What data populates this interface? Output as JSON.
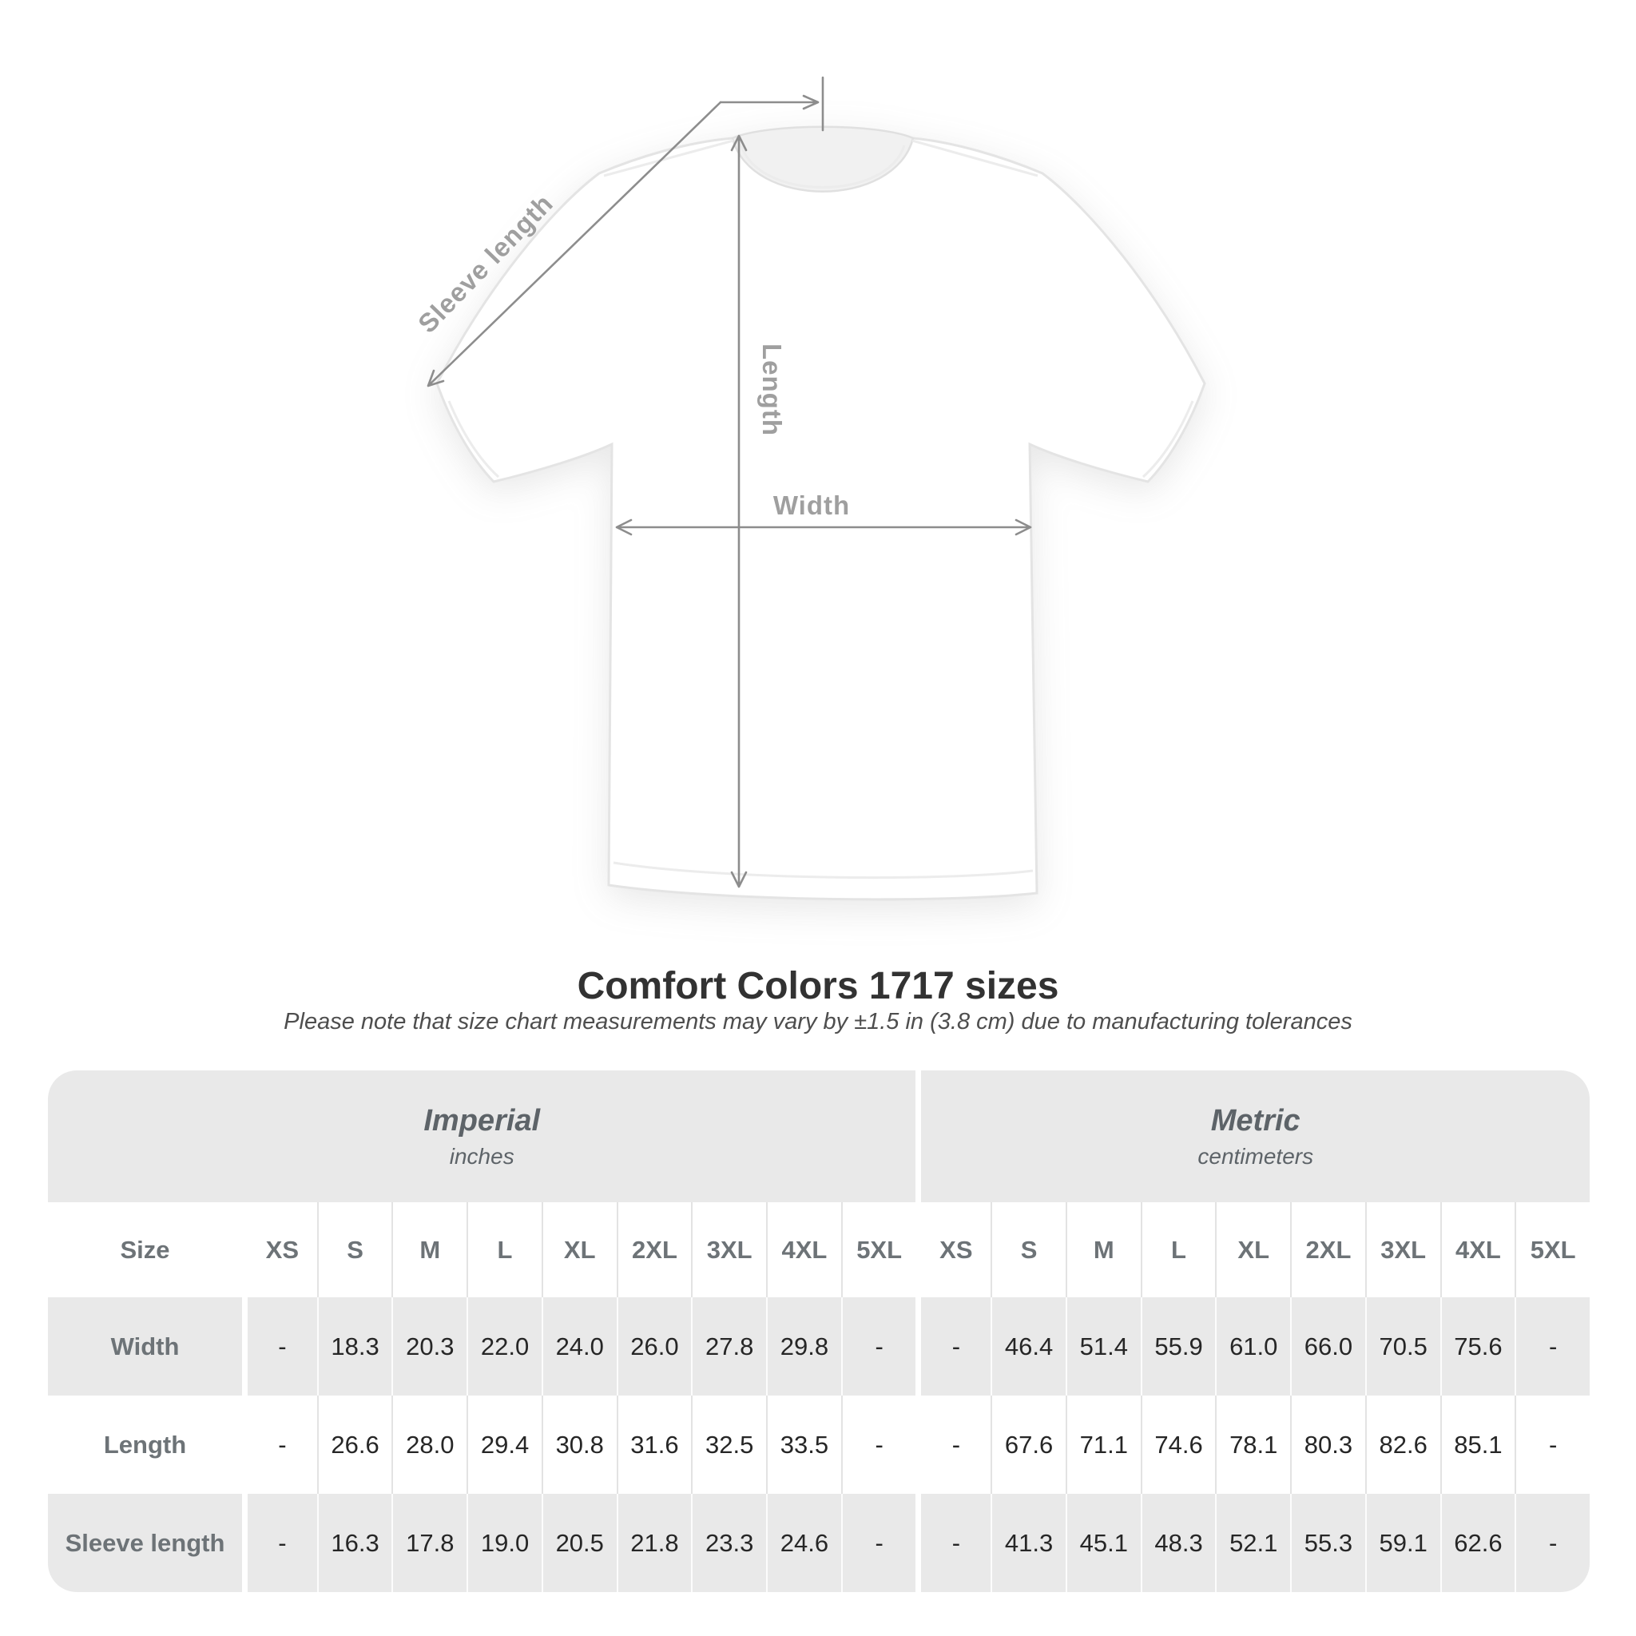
{
  "diagram": {
    "sleeve_length_label": "Sleeve length",
    "length_label": "Length",
    "width_label": "Width"
  },
  "heading": {
    "title": "Comfort Colors 1717 sizes",
    "subtitle": "Please note that size chart measurements may vary by ±1.5 in (3.8 cm) due to manufacturing tolerances"
  },
  "table": {
    "corner_label": "Size",
    "sections": [
      {
        "name": "Imperial",
        "unit": "inches"
      },
      {
        "name": "Metric",
        "unit": "centimeters"
      }
    ],
    "sizes": [
      "XS",
      "S",
      "M",
      "L",
      "XL",
      "2XL",
      "3XL",
      "4XL",
      "5XL"
    ],
    "rows": [
      {
        "label": "Width",
        "imperial": [
          "-",
          "18.3",
          "20.3",
          "22.0",
          "24.0",
          "26.0",
          "27.8",
          "29.8",
          "-"
        ],
        "metric": [
          "-",
          "46.4",
          "51.4",
          "55.9",
          "61.0",
          "66.0",
          "70.5",
          "75.6",
          "-"
        ]
      },
      {
        "label": "Length",
        "imperial": [
          "-",
          "26.6",
          "28.0",
          "29.4",
          "30.8",
          "31.6",
          "32.5",
          "33.5",
          "-"
        ],
        "metric": [
          "-",
          "67.6",
          "71.1",
          "74.6",
          "78.1",
          "80.3",
          "82.6",
          "85.1",
          "-"
        ]
      },
      {
        "label": "Sleeve length",
        "imperial": [
          "-",
          "16.3",
          "17.8",
          "19.0",
          "20.5",
          "21.8",
          "23.3",
          "24.6",
          "-"
        ],
        "metric": [
          "-",
          "41.3",
          "45.1",
          "48.3",
          "52.1",
          "55.3",
          "59.1",
          "62.6",
          "-"
        ]
      }
    ]
  },
  "colors": {
    "table_gray": "#e9e9e9",
    "arrow_gray": "#8d8d8d",
    "diagram_label_gray": "#9f9f9f",
    "header_text": "#6d7377",
    "value_text": "#262626"
  },
  "chart_data": {
    "type": "table",
    "title": "Comfort Colors 1717 sizes",
    "note": "Please note that size chart measurements may vary by ±1.5 in (3.8 cm) due to manufacturing tolerances",
    "sections": [
      "Imperial (inches)",
      "Metric (centimeters)"
    ],
    "columns": [
      "XS",
      "S",
      "M",
      "L",
      "XL",
      "2XL",
      "3XL",
      "4XL",
      "5XL"
    ],
    "rows": [
      {
        "measure": "Width",
        "imperial_in": [
          null,
          18.3,
          20.3,
          22.0,
          24.0,
          26.0,
          27.8,
          29.8,
          null
        ],
        "metric_cm": [
          null,
          46.4,
          51.4,
          55.9,
          61.0,
          66.0,
          70.5,
          75.6,
          null
        ]
      },
      {
        "measure": "Length",
        "imperial_in": [
          null,
          26.6,
          28.0,
          29.4,
          30.8,
          31.6,
          32.5,
          33.5,
          null
        ],
        "metric_cm": [
          null,
          67.6,
          71.1,
          74.6,
          78.1,
          80.3,
          82.6,
          85.1,
          null
        ]
      },
      {
        "measure": "Sleeve length",
        "imperial_in": [
          null,
          16.3,
          17.8,
          19.0,
          20.5,
          21.8,
          23.3,
          24.6,
          null
        ],
        "metric_cm": [
          null,
          41.3,
          45.1,
          48.3,
          52.1,
          55.3,
          59.1,
          62.6,
          null
        ]
      }
    ]
  }
}
